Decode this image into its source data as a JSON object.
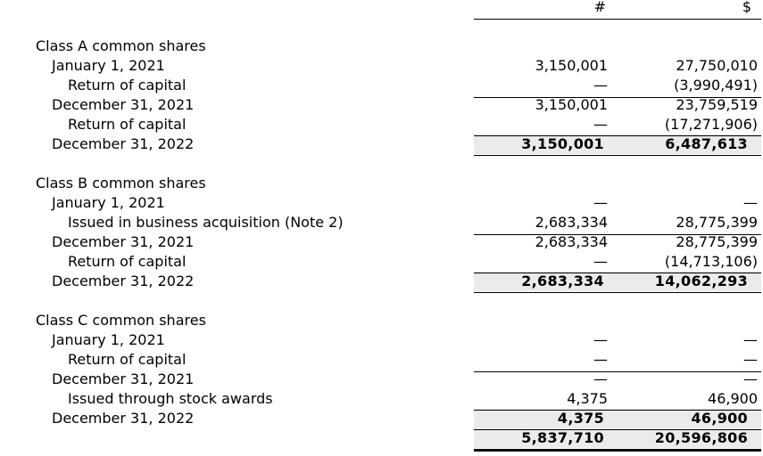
{
  "header": {
    "col_count": "#",
    "col_amount": "$"
  },
  "rows": [
    {
      "label": "Class A common shares",
      "level": 0,
      "count": "",
      "amount": "",
      "bold": false
    },
    {
      "label": "January 1, 2021",
      "level": 1,
      "count": "3,150,001",
      "amount": "27,750,010",
      "bold": false
    },
    {
      "label": "Return of capital",
      "level": 2,
      "count": "—",
      "amount": "(3,990,491)",
      "bold": false
    },
    {
      "label": "December 31, 2021",
      "level": 1,
      "count": "3,150,001",
      "amount": "23,759,519",
      "bold": false
    },
    {
      "label": "Return of capital",
      "level": 2,
      "count": "—",
      "amount": "(17,271,906)",
      "bold": false
    },
    {
      "label": "December 31, 2022",
      "level": 1,
      "count": "3,150,001",
      "amount": "6,487,613",
      "bold": true
    },
    {
      "label": "Class B common shares",
      "level": 0,
      "count": "",
      "amount": "",
      "bold": false
    },
    {
      "label": "January 1, 2021",
      "level": 1,
      "count": "—",
      "amount": "—",
      "bold": false
    },
    {
      "label": "Issued in business acquisition (Note 2)",
      "level": 2,
      "count": "2,683,334",
      "amount": "28,775,399",
      "bold": false
    },
    {
      "label": "December 31, 2021",
      "level": 1,
      "count": "2,683,334",
      "amount": "28,775,399",
      "bold": false
    },
    {
      "label": "Return of capital",
      "level": 2,
      "count": "—",
      "amount": "(14,713,106)",
      "bold": false
    },
    {
      "label": "December 31, 2022",
      "level": 1,
      "count": "2,683,334",
      "amount": "14,062,293",
      "bold": true
    },
    {
      "label": "Class C common shares",
      "level": 0,
      "count": "",
      "amount": "",
      "bold": false
    },
    {
      "label": "January 1, 2021",
      "level": 1,
      "count": "—",
      "amount": "—",
      "bold": false
    },
    {
      "label": "Return of capital",
      "level": 2,
      "count": "—",
      "amount": "—",
      "bold": false
    },
    {
      "label": "December 31, 2021",
      "level": 1,
      "count": "—",
      "amount": "—",
      "bold": false
    },
    {
      "label": "Issued through stock awards",
      "level": 2,
      "count": "4,375",
      "amount": "46,900",
      "bold": false
    },
    {
      "label": "December 31, 2022",
      "level": 1,
      "count": "4,375",
      "amount": "46,900",
      "bold": true
    },
    {
      "label": "",
      "level": 1,
      "count": "5,837,710",
      "amount": "20,596,806",
      "bold": true
    }
  ]
}
